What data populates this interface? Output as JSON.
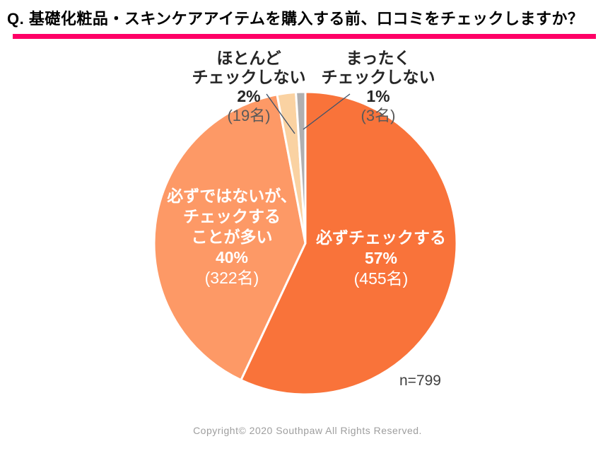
{
  "title": "Q. 基礎化粧品・スキンケアアイテムを購入する前、口コミをチェックしますか？",
  "sample_size_label": "n=799",
  "copyright": "Copyright© 2020 Southpaw All Rights Reserved.",
  "colors": {
    "accent_bar": "#FF0066",
    "leader_line": "#44546A",
    "outside_label_dark": "#262626",
    "outside_label_gray": "#595959",
    "inside_label_text": "#FFFFFF"
  },
  "chart_data": {
    "type": "pie",
    "title": "Q. 基礎化粧品・スキンケアアイテムを購入する前、口コミをチェックしますか？",
    "n": 799,
    "unit": "名",
    "start_angle_deg": 0,
    "direction": "clockwise",
    "legend_position": "none",
    "slices": [
      {
        "id": "always-check",
        "label": "必ずチェックする",
        "percent": 57,
        "count": 455,
        "count_label": "(455名)",
        "color": "#F9733A",
        "label_position": "inside"
      },
      {
        "id": "often-check",
        "label": "必ずではないが、チェックすることが多い",
        "percent": 40,
        "count": 322,
        "count_label": "(322名)",
        "color": "#FD9966",
        "label_position": "inside"
      },
      {
        "id": "rarely-check",
        "label": "ほとんどチェックしない",
        "percent": 2,
        "count": 19,
        "count_label": "(19名)",
        "color": "#FAD2A2",
        "label_position": "outside"
      },
      {
        "id": "never-check",
        "label": "まったくチェックしない",
        "percent": 1,
        "count": 3,
        "count_label": "(3名)",
        "color": "#B0AFB0",
        "label_position": "outside"
      }
    ]
  },
  "callouts": {
    "rarely": {
      "line1": "ほとんど",
      "line2": "チェックしない",
      "pct": "2%",
      "count": "(19名)"
    },
    "never": {
      "line1": "まったく",
      "line2": "チェックしない",
      "pct": "1%",
      "count": "(3名)"
    },
    "often": {
      "line1": "必ずではないが、",
      "line2": "チェックする",
      "line3": "ことが多い",
      "pct": "40%",
      "count": "(322名)"
    },
    "always": {
      "line1": "必ずチェックする",
      "pct": "57%",
      "count": "(455名)"
    }
  }
}
